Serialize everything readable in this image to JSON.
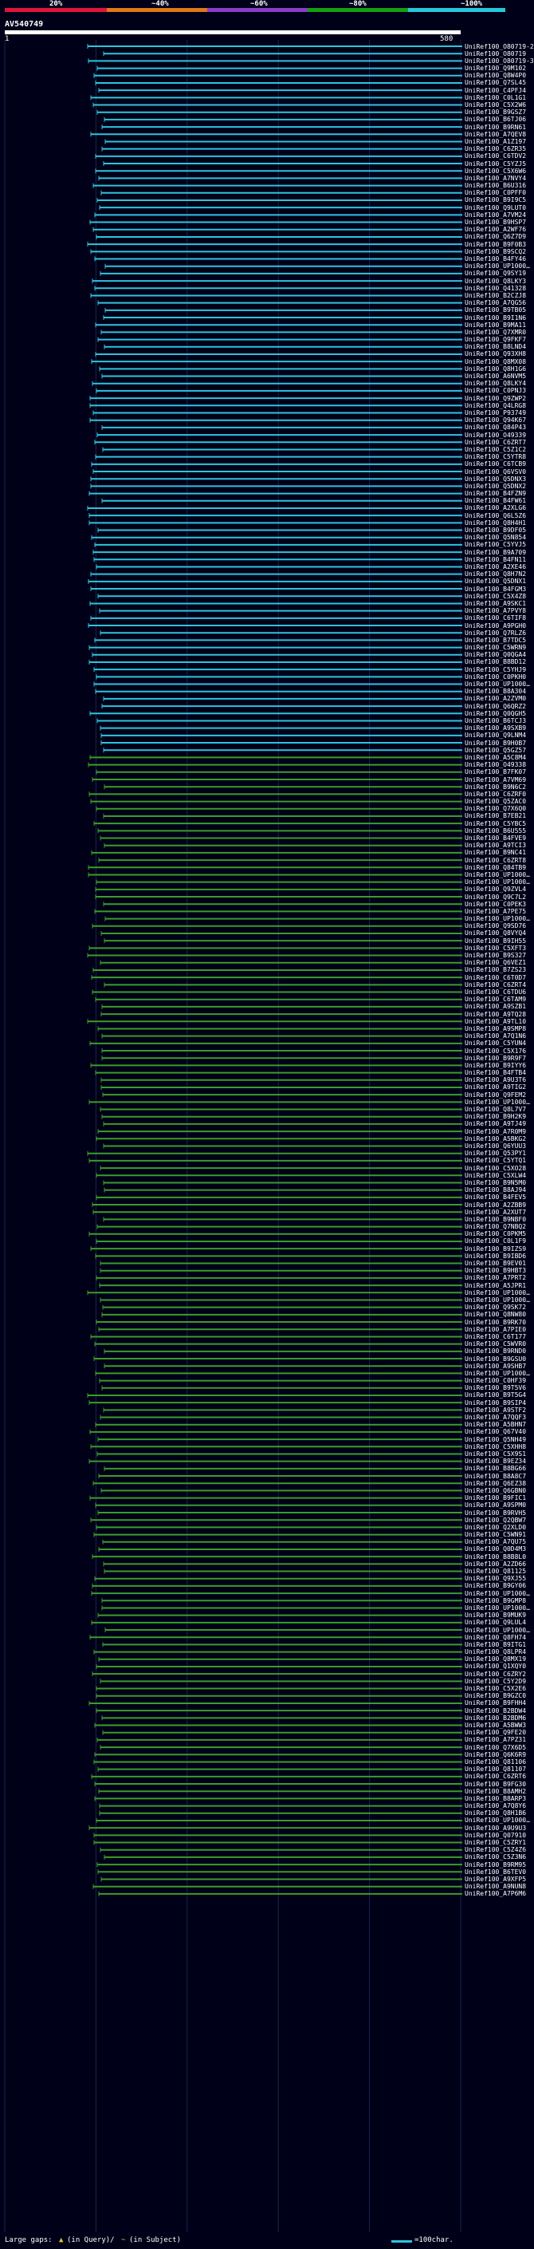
{
  "legend": {
    "labels": [
      "20%",
      "~40%",
      "~60%",
      "~80%",
      "~100%"
    ],
    "colors": [
      "#e0143c",
      "#e07814",
      "#8c3cc8",
      "#14a014",
      "#28c8dc"
    ]
  },
  "query": {
    "name": "AV540749",
    "start_label": "1",
    "end_label": "580"
  },
  "hit_colors": {
    "cyan": "#2ec4dc",
    "green": "#3c9c28"
  },
  "hits": [
    "UniRef100_O80719-2",
    "UniRef100_O80719",
    "UniRef100_O80719-3",
    "UniRef100_Q9M102",
    "UniRef100_Q8W4P0",
    "UniRef100_Q7SL45",
    "UniRef100_C4PFJ4",
    "UniRef100_C0L1G1",
    "UniRef100_C5X2W6",
    "UniRef100_B9GSZ7",
    "UniRef100_B6TJ06",
    "UniRef100_B9RN61",
    "UniRef100_A7QEV8",
    "UniRef100_A1Z197",
    "UniRef100_C6ZR35",
    "UniRef100_C6TDV2",
    "UniRef100_C5YZJ5",
    "UniRef100_C5X6W6",
    "UniRef100_A7NVY4",
    "UniRef100_B6U316",
    "UniRef100_C0PFF0",
    "UniRef100_B9I9C5",
    "UniRef100_Q9LUT0",
    "UniRef100_A7VM24",
    "UniRef100_B9HSP7",
    "UniRef100_A2WF76",
    "UniRef100_Q6Z7D9",
    "UniRef100_B9F0B3",
    "UniRef100_B9SCQ2",
    "UniRef100_B4FY46",
    "UniRef100_UP1000…",
    "UniRef100_Q9SY19",
    "UniRef100_Q8LKY3",
    "UniRef100_Q41328",
    "UniRef100_B2CZJ8",
    "UniRef100_A7QG56",
    "UniRef100_B9TB05",
    "UniRef100_B9I1N6",
    "UniRef100_B9MA11",
    "UniRef100_Q7XMR0",
    "UniRef100_Q9FKF7",
    "UniRef100_B8LND4",
    "UniRef100_Q93XH8",
    "UniRef100_Q8MX08",
    "UniRef100_Q8H1G6",
    "UniRef100_A6NVM5",
    "UniRef100_Q8LKY4",
    "UniRef100_C0PNJ3",
    "UniRef100_Q9ZWP2",
    "UniRef100_Q4LRG8",
    "UniRef100_P93749",
    "UniRef100_Q94K67",
    "UniRef100_Q84P43",
    "UniRef100_O49339",
    "UniRef100_C6ZRT7",
    "UniRef100_C5Z1C2",
    "UniRef100_C5YTR8",
    "UniRef100_C6TCB9",
    "UniRef100_Q6VSV0",
    "UniRef100_Q5DNX3",
    "UniRef100_Q5DNX2",
    "UniRef100_B4FZN9",
    "UniRef100_B4FW61",
    "UniRef100_A2XLG6",
    "UniRef100_Q6L5Z6",
    "UniRef100_Q8H4H1",
    "UniRef100_B9DF05",
    "UniRef100_Q5N854",
    "UniRef100_C5YVJ5",
    "UniRef100_B9A709",
    "UniRef100_B4FN11",
    "UniRef100_A2XE46",
    "UniRef100_Q8H7N2",
    "UniRef100_Q5DNX1",
    "UniRef100_B4FGM3",
    "UniRef100_C5X4Z8",
    "UniRef100_A9SKC1",
    "UniRef100_A7PVY8",
    "UniRef100_C6TIF8",
    "UniRef100_A9PGH0",
    "UniRef100_Q7RLZ6",
    "UniRef100_B7TDC5",
    "UniRef100_C5WRN9",
    "UniRef100_Q0QGA4",
    "UniRef100_B8BD12",
    "UniRef100_C5YHJ9",
    "UniRef100_C0PKH0",
    "UniRef100_UP1000…",
    "UniRef100_B8A304",
    "UniRef100_A2ZVM0",
    "UniRef100_Q6QRZ2",
    "UniRef100_Q0QGH5",
    "UniRef100_B6TCJ3",
    "UniRef100_A9SXB9",
    "UniRef100_Q9LNM4",
    "UniRef100_B9H0B7",
    "UniRef100_Q5GZ57",
    "UniRef100_A5C8M4",
    "UniRef100_O49338",
    "UniRef100_B7FK07",
    "UniRef100_A7VM69",
    "UniRef100_B9N6C2",
    "UniRef100_C6ZRF0",
    "UniRef100_Q5ZAC0",
    "UniRef100_Q7X6Q0",
    "UniRef100_B7EB21",
    "UniRef100_C5YBC5",
    "UniRef100_B6U555",
    "UniRef100_B4FVE9",
    "UniRef100_A9TCI3",
    "UniRef100_B9NC41",
    "UniRef100_C6ZRT8",
    "UniRef100_Q84TB9",
    "UniRef100_UP1000…",
    "UniRef100_UP1000…",
    "UniRef100_Q9ZVL4",
    "UniRef100_Q9C7L2",
    "UniRef100_C0PEK3",
    "UniRef100_A7PE75",
    "UniRef100_UP1000…",
    "UniRef100_Q9SD76",
    "UniRef100_Q8VYQ4",
    "UniRef100_B9IH55",
    "UniRef100_C5XFT3",
    "UniRef100_B9S327",
    "UniRef100_Q6VEZ1",
    "UniRef100_B7ZS23",
    "UniRef100_C6T0D7",
    "UniRef100_C6ZRT4",
    "UniRef100_C6TDU6",
    "UniRef100_C6TAM9",
    "UniRef100_A9SZB1",
    "UniRef100_A9TQ28",
    "UniRef100_A9TL10",
    "UniRef100_A9SMP8",
    "UniRef100_A7Q1N6",
    "UniRef100_C5YUN4",
    "UniRef100_C5X176",
    "UniRef100_B9R9F7",
    "UniRef100_B9IYY6",
    "UniRef100_B4FTB4",
    "UniRef100_A9U3T6",
    "UniRef100_A9TIG2",
    "UniRef100_Q9FEM2",
    "UniRef100_UP1000…",
    "UniRef100_Q8L7V7",
    "UniRef100_B9H2K9",
    "UniRef100_A9TJ49",
    "UniRef100_A7R0M9",
    "UniRef100_A5BKG2",
    "UniRef100_Q6YUU3",
    "UniRef100_Q53PY1",
    "UniRef100_C5YTQ1",
    "UniRef100_C5XO28",
    "UniRef100_C5XLW4",
    "UniRef100_B9N5M0",
    "UniRef100_B8AJ94",
    "UniRef100_B4FEV5",
    "UniRef100_A2ZBB9",
    "UniRef100_A2XUT7",
    "UniRef100_B9NBF0",
    "UniRef100_Q7NBQ2",
    "UniRef100_C0PKM5",
    "UniRef100_C0L1F9",
    "UniRef100_B9IZS9",
    "UniRef100_B9IBD6",
    "UniRef100_B9EV01",
    "UniRef100_B9HBT3",
    "UniRef100_A7PRT2",
    "UniRef100_A5JPR1",
    "UniRef100_UP1000…",
    "UniRef100_UP1000…",
    "UniRef100_Q9SK72",
    "UniRef100_Q8NW80",
    "UniRef100_B9RK70",
    "UniRef100_A7PIE0",
    "UniRef100_C6T177",
    "UniRef100_C5WVR0",
    "UniRef100_B9RND0",
    "UniRef100_B9GSU0",
    "UniRef100_A9SHB7",
    "UniRef100_UP1000…",
    "UniRef100_C0HF39",
    "UniRef100_B9T5V6",
    "UniRef100_B9T5G4",
    "UniRef100_B9SIP4",
    "UniRef100_A9STF2",
    "UniRef100_A7QQF3",
    "UniRef100_A5BHN7",
    "UniRef100_Q67V40",
    "UniRef100_Q5NH49",
    "UniRef100_C5XHH8",
    "UniRef100_C5X9S1",
    "UniRef100_B9EZ34",
    "UniRef100_B8BG66",
    "UniRef100_B8A8C7",
    "UniRef100_Q6EZ38",
    "UniRef100_Q6GBN0",
    "UniRef100_B9FIC1",
    "UniRef100_A9SPM0",
    "UniRef100_B9RVH5",
    "UniRef100_Q2QBW7",
    "UniRef100_Q2XLD0",
    "UniRef100_C5WN91",
    "UniRef100_A7QU75",
    "UniRef100_Q0D4M3",
    "UniRef100_B8B8L0",
    "UniRef100_A2ZD66",
    "UniRef100_Q81125",
    "UniRef100_Q9XJ55",
    "UniRef100_B9GY06",
    "UniRef100_UP1000…",
    "UniRef100_B9GMP8",
    "UniRef100_UP1000…",
    "UniRef100_B9MUK9",
    "UniRef100_Q9LUL4",
    "UniRef100_UP1000…",
    "UniRef100_Q8FH74",
    "UniRef100_B9ITG1",
    "UniRef100_Q8LPR4",
    "UniRef100_Q8MX19",
    "UniRef100_Q1XQY0",
    "UniRef100_C6ZRY2",
    "UniRef100_C5Y2D9",
    "UniRef100_C5X2E6",
    "UniRef100_B9GZC0",
    "UniRef100_B9FHH4",
    "UniRef100_B2BDW4",
    "UniRef100_B2BDM6",
    "UniRef100_A5BWW3",
    "UniRef100_Q9FE20",
    "UniRef100_A7PZ31",
    "UniRef100_Q7X6D5",
    "UniRef100_Q6K6R9",
    "UniRef100_Q81106",
    "UniRef100_Q81107",
    "UniRef100_C6ZRT6",
    "UniRef100_B9FG30",
    "UniRef100_B8AMH2",
    "UniRef100_B8ARP3",
    "UniRef100_A7Q8Y6",
    "UniRef100_Q8H1B6",
    "UniRef100_UP1000…",
    "UniRef100_A9U9U3",
    "UniRef100_Q07910",
    "UniRef100_C5ZRY1",
    "UniRef100_C5Z4Z6",
    "UniRef100_C5Z3N6",
    "UniRef100_B9RM95",
    "UniRef100_B6TEV0",
    "UniRef100_A9XFP5",
    "UniRef100_A9NUN8",
    "UniRef100_A7P6M6"
  ],
  "footer": {
    "large_gaps": "Large gaps:",
    "in_query": "(in Query)/",
    "in_subject": "(in Subject)",
    "scale": "=100char."
  }
}
